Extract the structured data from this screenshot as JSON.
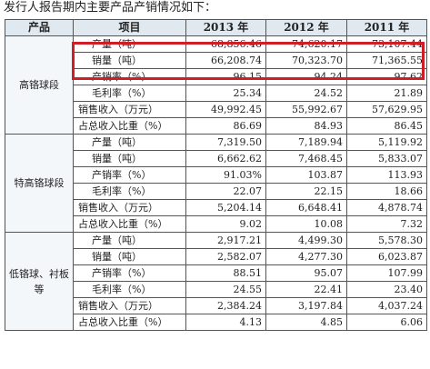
{
  "intro": "发行人报告期内主要产品产销情况如下：",
  "headers": [
    "产品",
    "项目",
    "2013 年",
    "2012 年",
    "2011 年"
  ],
  "groups": [
    {
      "product": "高铬球段",
      "rows": [
        {
          "item": "产量（吨）",
          "v2013": "68,856.46",
          "v2012": "74,620.17",
          "v2011": "73,107.44"
        },
        {
          "item": "销量（吨）",
          "v2013": "66,208.74",
          "v2012": "70,323.70",
          "v2011": "71,365.55"
        },
        {
          "item": "产销率（%）",
          "v2013": "96.15",
          "v2012": "94.24",
          "v2011": "97.62"
        },
        {
          "item": "毛利率（%）",
          "v2013": "25.34",
          "v2012": "24.52",
          "v2011": "21.89"
        },
        {
          "item": "销售收入（万元）",
          "v2013": "49,992.45",
          "v2012": "55,992.67",
          "v2011": "57,629.95"
        },
        {
          "item": "占总收入比重（%）",
          "v2013": "86.69",
          "v2012": "84.93",
          "v2011": "86.45"
        }
      ]
    },
    {
      "product": "特高铬球段",
      "rows": [
        {
          "item": "产量（吨）",
          "v2013": "7,319.50",
          "v2012": "7,189.94",
          "v2011": "5,119.92"
        },
        {
          "item": "销量（吨）",
          "v2013": "6,662.62",
          "v2012": "7,468.45",
          "v2011": "5,833.07"
        },
        {
          "item": "产销率（%）",
          "v2013": "91.03%",
          "v2012": "103.87",
          "v2011": "113.93"
        },
        {
          "item": "毛利率（%）",
          "v2013": "22.07",
          "v2012": "22.15",
          "v2011": "18.66"
        },
        {
          "item": "销售收入（万元）",
          "v2013": "5,204.14",
          "v2012": "6,648.41",
          "v2011": "4,878.74"
        },
        {
          "item": "占总收入比重（%）",
          "v2013": "9.02",
          "v2012": "10.08",
          "v2011": "7.32"
        }
      ]
    },
    {
      "product": "低铬球、衬板等",
      "rows": [
        {
          "item": "产量（吨）",
          "v2013": "2,917.21",
          "v2012": "4,499.30",
          "v2011": "5,578.30"
        },
        {
          "item": "销量（吨）",
          "v2013": "2,582.07",
          "v2012": "4,277.30",
          "v2011": "6,023.87"
        },
        {
          "item": "产销率（%）",
          "v2013": "88.51",
          "v2012": "95.07",
          "v2011": "107.99"
        },
        {
          "item": "毛利率（%）",
          "v2013": "24.55",
          "v2012": "22.41",
          "v2011": "23.40"
        },
        {
          "item": "销售收入（万元）",
          "v2013": "2,384.24",
          "v2012": "3,197.84",
          "v2011": "4,037.24"
        },
        {
          "item": "占总收入比重（%）",
          "v2013": "4.13",
          "v2012": "4.85",
          "v2011": "6.06"
        }
      ]
    }
  ],
  "highlight_color": "#d11d26"
}
